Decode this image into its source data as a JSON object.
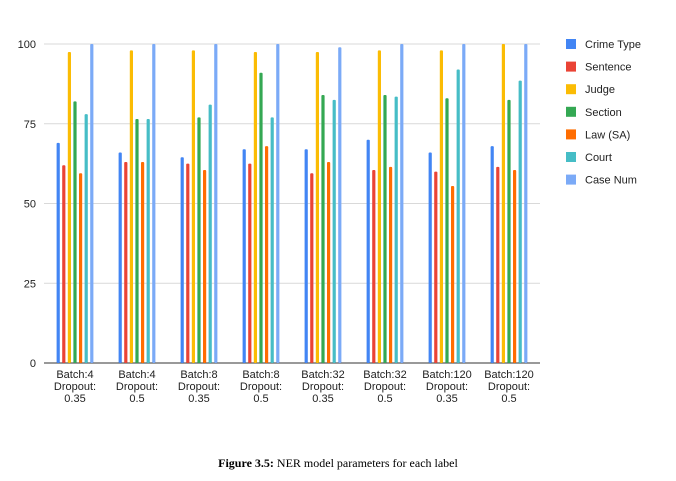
{
  "chart_data": {
    "type": "bar",
    "title": "",
    "xlabel": "",
    "ylabel": "",
    "ylim": [
      0,
      100
    ],
    "yticks": [
      0,
      25,
      50,
      75,
      100
    ],
    "grid": true,
    "legend_position": "right",
    "categories": [
      [
        "Batch:4",
        "Dropout:",
        "0.35"
      ],
      [
        "Batch:4",
        "Dropout:",
        "0.5"
      ],
      [
        "Batch:8",
        "Dropout:",
        "0.35"
      ],
      [
        "Batch:8",
        "Dropout:",
        "0.5"
      ],
      [
        "Batch:32",
        "Dropout:",
        "0.35"
      ],
      [
        "Batch:32",
        "Dropout:",
        "0.5"
      ],
      [
        "Batch:120",
        "Dropout:",
        "0.35"
      ],
      [
        "Batch:120",
        "Dropout:",
        "0.5"
      ]
    ],
    "series": [
      {
        "name": "Crime Type",
        "color": "#4285f4",
        "values": [
          69,
          66,
          64.5,
          67,
          67,
          70,
          66,
          68
        ]
      },
      {
        "name": "Sentence",
        "color": "#ea4335",
        "values": [
          62,
          63,
          62.5,
          62.5,
          59.5,
          60.5,
          60,
          61.5
        ]
      },
      {
        "name": "Judge",
        "color": "#fbbc04",
        "values": [
          97.5,
          98,
          98,
          97.5,
          97.5,
          98,
          98,
          100
        ]
      },
      {
        "name": "Section",
        "color": "#34a853",
        "values": [
          82,
          76.5,
          77,
          91,
          84,
          84,
          83,
          82.5
        ]
      },
      {
        "name": "Law (SA)",
        "color": "#ff6d01",
        "values": [
          59.5,
          63,
          60.5,
          68,
          63,
          61.5,
          55.5,
          60.5
        ]
      },
      {
        "name": "Court",
        "color": "#46bdc6",
        "values": [
          78,
          76.5,
          81,
          77,
          82.5,
          83.5,
          92,
          88.5
        ]
      },
      {
        "name": "Case Num",
        "color": "#7baaf7",
        "values": [
          100,
          100,
          100,
          100,
          99,
          100,
          100,
          100
        ]
      }
    ]
  },
  "caption": {
    "label": "Figure 3.5:",
    "text": "NER model parameters for each label"
  }
}
